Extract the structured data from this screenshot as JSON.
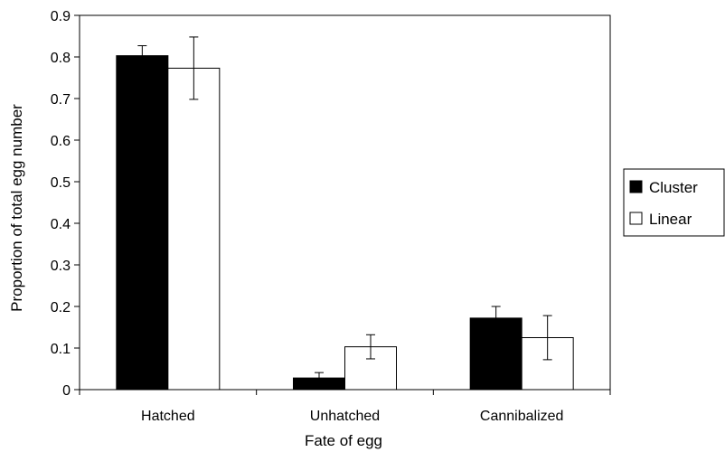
{
  "chart_data": {
    "type": "bar",
    "xlabel": "Fate of egg",
    "ylabel": "Proportion of total egg number",
    "ylim": [
      0,
      0.9
    ],
    "yticks": [
      0,
      0.1,
      0.2,
      0.3,
      0.4,
      0.5,
      0.6,
      0.7,
      0.8,
      0.9
    ],
    "ytick_labels": [
      "0",
      "0.1",
      "0.2",
      "0.3",
      "0.4",
      "0.5",
      "0.6",
      "0.7",
      "0.8",
      "0.9"
    ],
    "categories": [
      "Hatched",
      "Unhatched",
      "Cannibalized"
    ],
    "series": [
      {
        "name": "Cluster",
        "color": "#000000",
        "values": [
          0.803,
          0.028,
          0.172
        ],
        "error": [
          0.024,
          0.013,
          0.028
        ]
      },
      {
        "name": "Linear",
        "color": "#ffffff",
        "values": [
          0.773,
          0.103,
          0.125
        ],
        "error": [
          0.075,
          0.029,
          0.053
        ]
      }
    ],
    "grid": false,
    "legend_position": "right"
  }
}
